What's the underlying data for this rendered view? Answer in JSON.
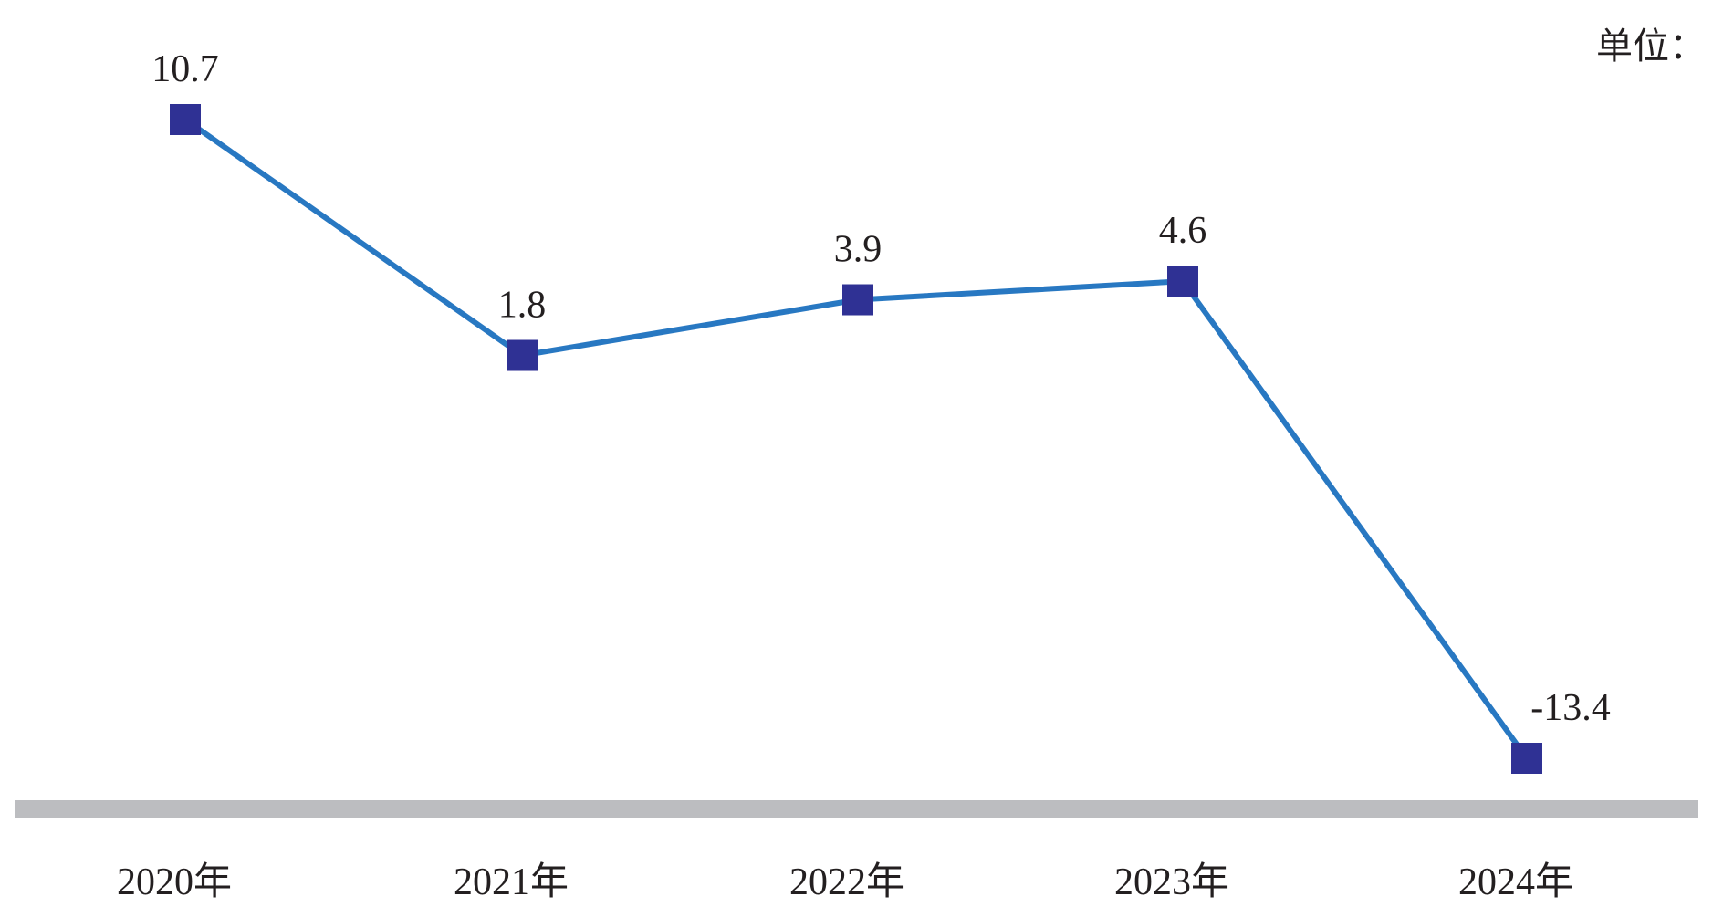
{
  "unit_label": "单位：",
  "chart_data": {
    "type": "line",
    "categories": [
      "2020年",
      "2021年",
      "2022年",
      "2023年",
      "2024年"
    ],
    "values": [
      10.7,
      1.8,
      3.9,
      4.6,
      -13.4
    ],
    "data_labels": [
      "10.7",
      "1.8",
      "3.9",
      "4.6",
      "-13.4"
    ],
    "title": "",
    "xlabel": "",
    "ylabel": "",
    "ylim": [
      -15,
      12
    ],
    "grid": false,
    "line_color": "#2878c2",
    "marker_color": "#2f3194",
    "axis_color": "#bcbdc0",
    "text_color": "#231f20"
  }
}
